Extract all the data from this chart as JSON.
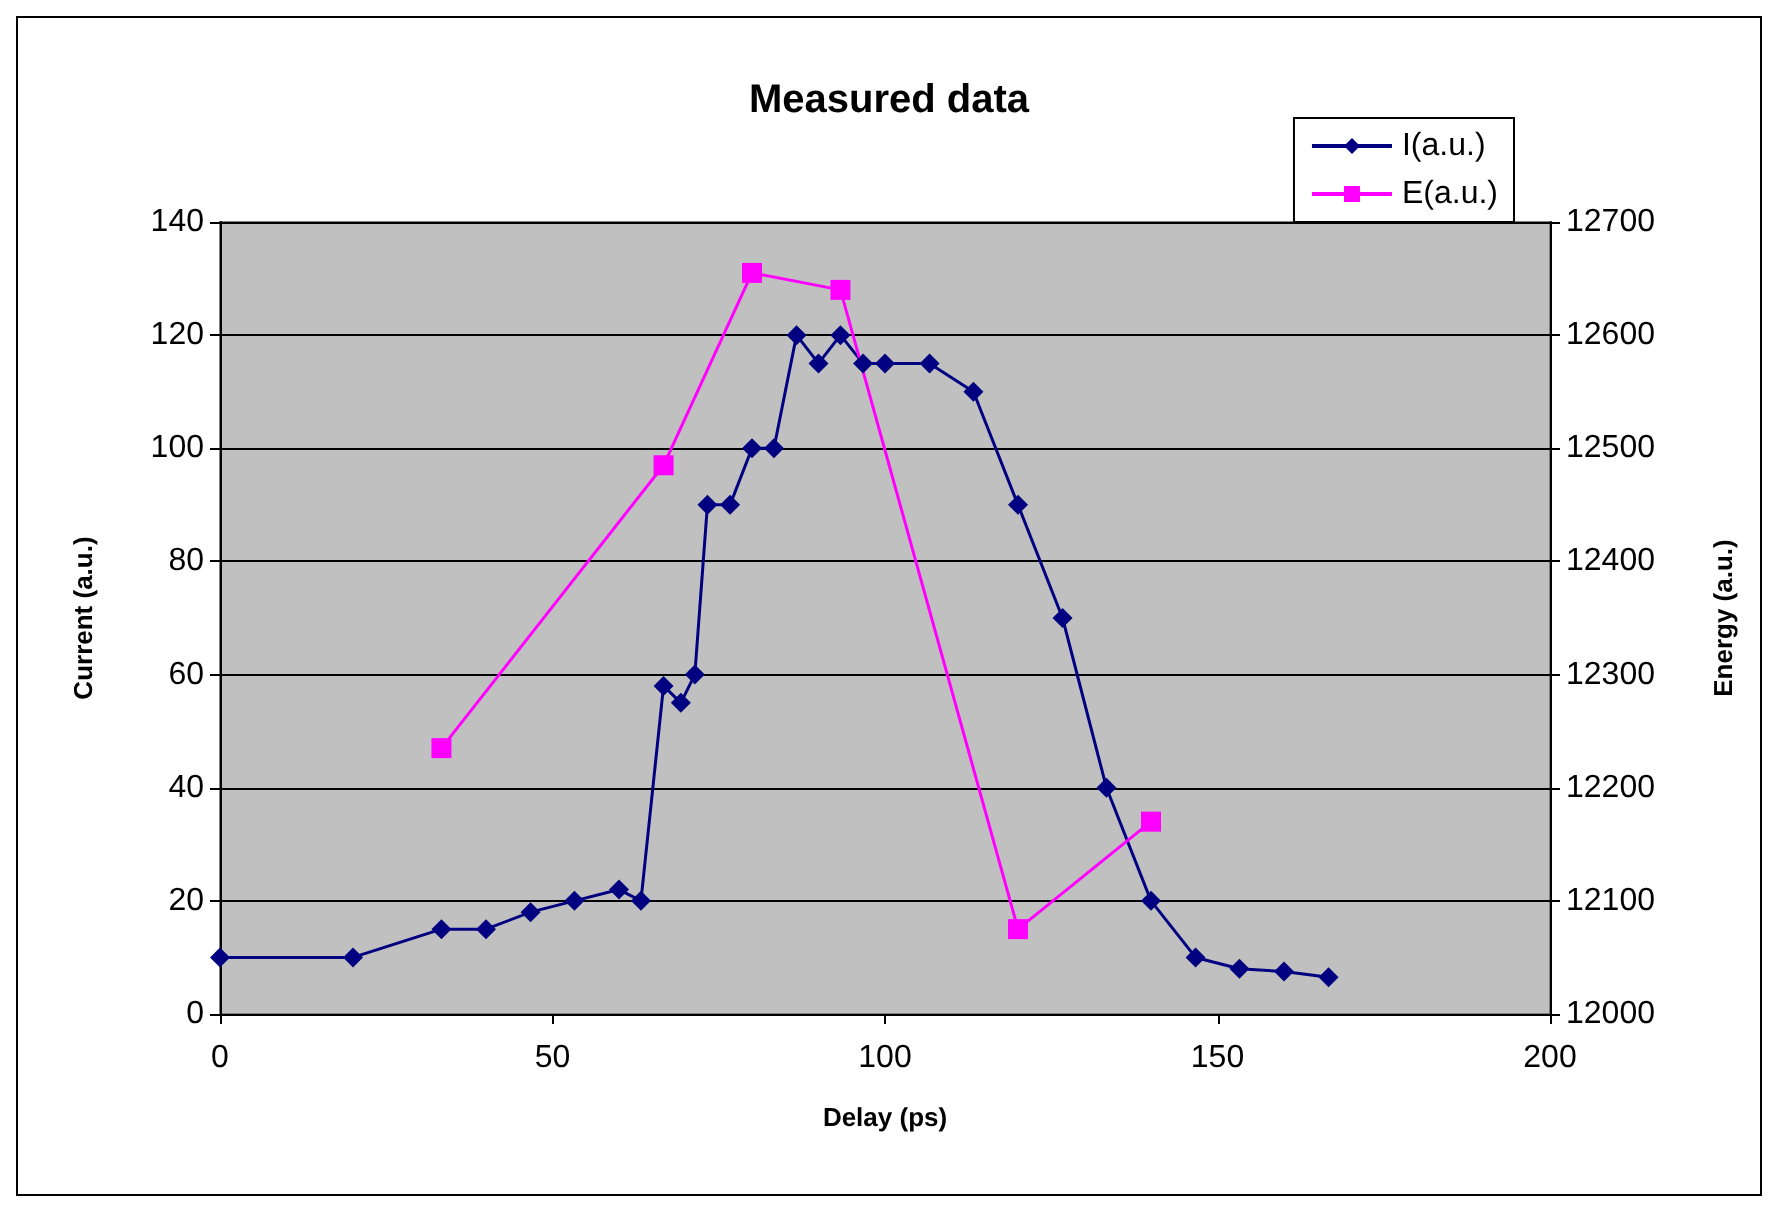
{
  "chart_data": {
    "type": "line",
    "title": "Measured data",
    "xlabel": "Delay (ps)",
    "ylabel": "Current (a.u.)",
    "y2label": "Energy (a.u.)",
    "xlim": [
      0,
      200
    ],
    "xticks": [
      0,
      50,
      100,
      150,
      200
    ],
    "ylim": [
      0,
      140
    ],
    "yticks": [
      0,
      20,
      40,
      60,
      80,
      100,
      120,
      140
    ],
    "y2lim": [
      12000,
      12700
    ],
    "y2ticks": [
      12000,
      12100,
      12200,
      12300,
      12400,
      12500,
      12600,
      12700
    ],
    "grid": "y",
    "legend": "top right",
    "line_style": "solid",
    "series": [
      {
        "name": "I(a.u.)",
        "color": "#000080",
        "marker": "diamond",
        "x": [
          0,
          20,
          33.3,
          40,
          46.7,
          53.3,
          60,
          63.3,
          66.7,
          69.3,
          71.4,
          73.3,
          76.7,
          80,
          83.3,
          86.7,
          90,
          93.3,
          96.7,
          100,
          106.7,
          113.3,
          120,
          126.7,
          133.3,
          140,
          146.7,
          153.3,
          160,
          166.7
        ],
        "values": [
          10,
          10,
          15,
          15,
          18,
          20,
          22,
          20,
          58,
          55,
          60,
          90,
          90,
          100,
          100,
          120,
          115,
          120,
          115,
          115,
          115,
          110,
          90,
          70,
          40,
          20,
          10,
          8,
          7.5,
          6.5
        ]
      },
      {
        "name": "E(a.u.)",
        "color": "#ff00ff",
        "marker": "square",
        "axis": "y2",
        "x": [
          33.3,
          66.7,
          80,
          93.3,
          120,
          140
        ],
        "values": [
          12235,
          12485,
          12655,
          12640,
          12075,
          12170
        ]
      }
    ]
  }
}
